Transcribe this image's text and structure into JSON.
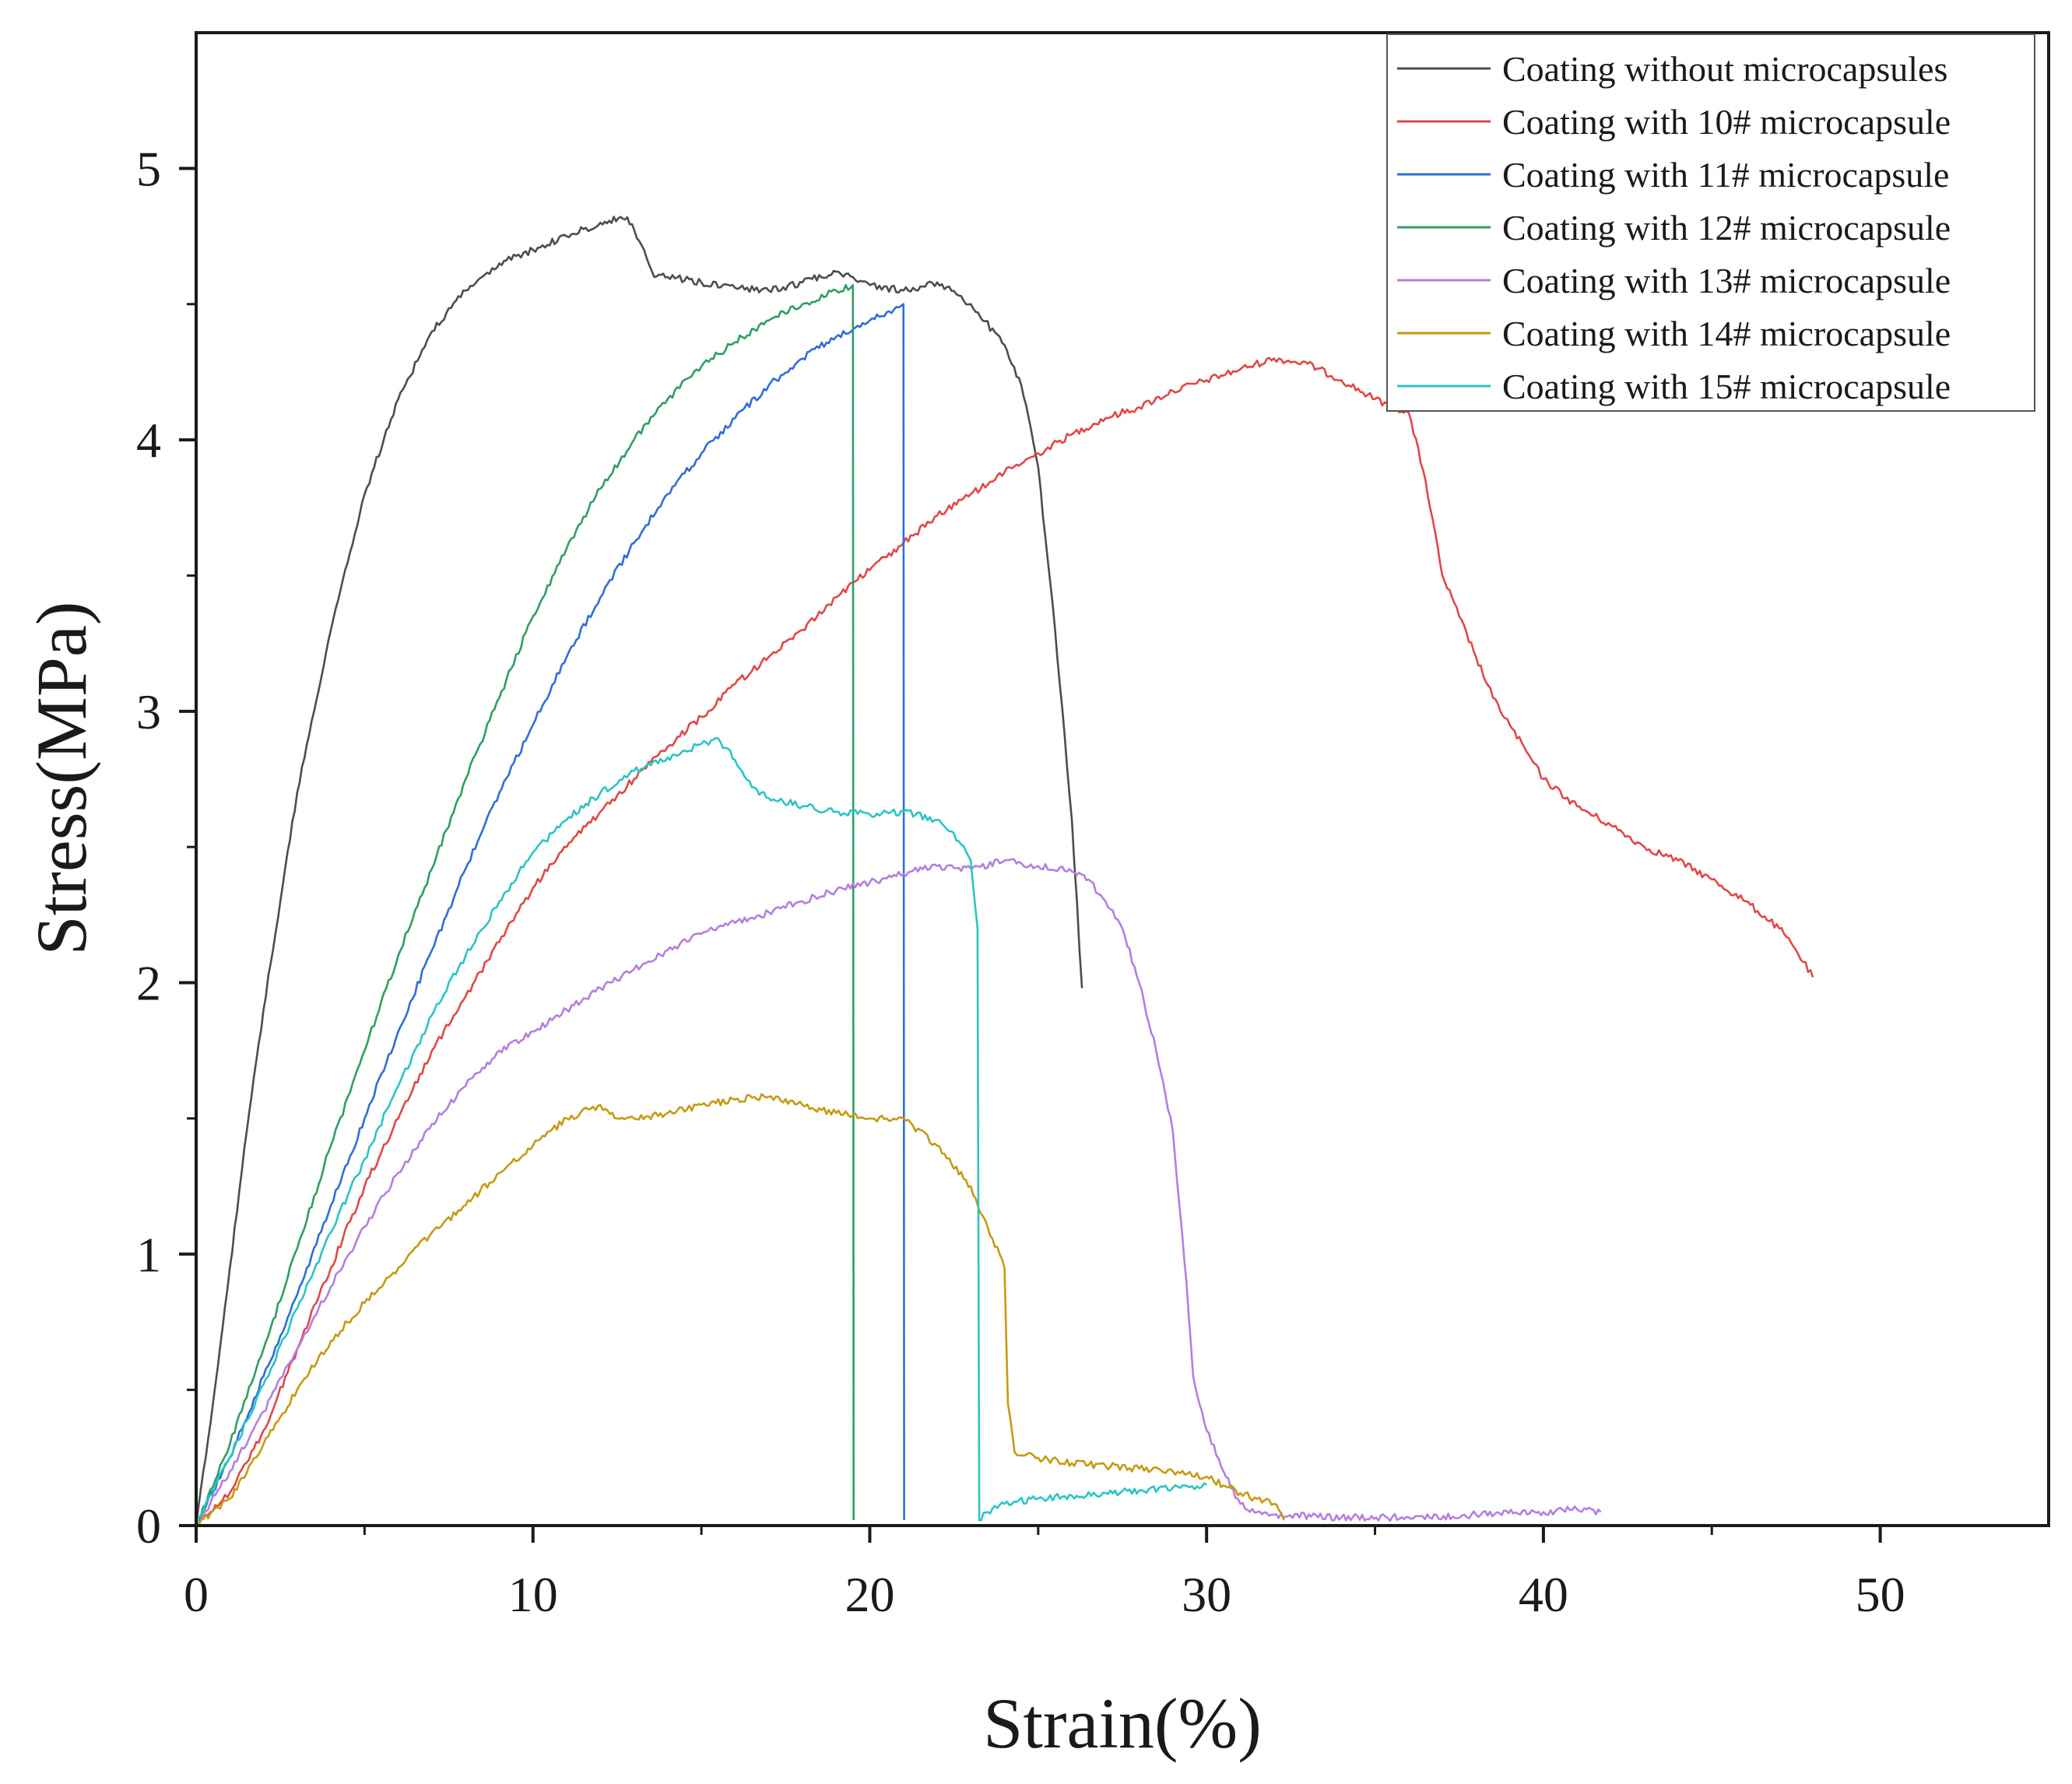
{
  "chart_data": {
    "type": "line",
    "title": "",
    "xlabel": "Strain(%)",
    "ylabel": "Stress(MPa)",
    "xlim": [
      0,
      55
    ],
    "ylim": [
      0,
      5.5
    ],
    "xticks": [
      0,
      10,
      20,
      30,
      40,
      50
    ],
    "yticks": [
      0,
      1,
      2,
      3,
      4,
      5
    ],
    "grid": false,
    "legend_position": "top-right",
    "series": [
      {
        "name": "Coating without microcapsules",
        "color": "#4d4d4d",
        "x": [
          0,
          0.5,
          1,
          1.5,
          2,
          2.5,
          3,
          4,
          5,
          6,
          7,
          8,
          9,
          10,
          11,
          12,
          12.8,
          13.3,
          13.6,
          14,
          15,
          16,
          17,
          18,
          19,
          19.5,
          20,
          21,
          22,
          23,
          24,
          24.5,
          25,
          25.5,
          26,
          26.3
        ],
        "y": [
          0,
          0.45,
          0.95,
          1.45,
          1.9,
          2.3,
          2.7,
          3.3,
          3.8,
          4.15,
          4.4,
          4.55,
          4.65,
          4.7,
          4.75,
          4.8,
          4.82,
          4.7,
          4.6,
          4.6,
          4.58,
          4.56,
          4.55,
          4.58,
          4.62,
          4.6,
          4.57,
          4.55,
          4.58,
          4.5,
          4.35,
          4.2,
          3.9,
          3.3,
          2.6,
          1.98
        ]
      },
      {
        "name": "Coating with 10# microcapsule",
        "color": "#e04848",
        "x": [
          0,
          1,
          2,
          3,
          4,
          5,
          6,
          7,
          8,
          9,
          10,
          11,
          12,
          13,
          14,
          15,
          16,
          17,
          18,
          19,
          20,
          21,
          22,
          23,
          24,
          25,
          26,
          27,
          28,
          29,
          30,
          31,
          32,
          33,
          34,
          35,
          36,
          36.5,
          37,
          37.5,
          38,
          38.5,
          39,
          39.5,
          40,
          41,
          42,
          43,
          44,
          45,
          46,
          47,
          47.5,
          48
        ],
        "y": [
          0,
          0.12,
          0.35,
          0.65,
          0.95,
          1.25,
          1.5,
          1.75,
          1.95,
          2.15,
          2.35,
          2.5,
          2.63,
          2.75,
          2.87,
          2.98,
          3.1,
          3.2,
          3.3,
          3.42,
          3.52,
          3.62,
          3.72,
          3.8,
          3.88,
          3.95,
          4.02,
          4.08,
          4.12,
          4.18,
          4.22,
          4.26,
          4.3,
          4.28,
          4.22,
          4.15,
          4.1,
          3.85,
          3.5,
          3.35,
          3.2,
          3.05,
          2.95,
          2.85,
          2.75,
          2.65,
          2.58,
          2.5,
          2.45,
          2.38,
          2.3,
          2.2,
          2.12,
          2.02
        ]
      },
      {
        "name": "Coating with 11# microcapsule",
        "color": "#2e6fd6",
        "x": [
          0,
          1,
          2,
          3,
          4,
          5,
          6,
          7,
          8,
          9,
          10,
          11,
          12,
          13,
          14,
          15,
          16,
          17,
          18,
          19,
          20,
          20.5,
          21,
          21.02
        ],
        "y": [
          0,
          0.25,
          0.55,
          0.85,
          1.18,
          1.5,
          1.82,
          2.12,
          2.42,
          2.7,
          2.95,
          3.2,
          3.42,
          3.62,
          3.8,
          3.95,
          4.08,
          4.2,
          4.3,
          4.38,
          4.44,
          4.47,
          4.5,
          0.02
        ]
      },
      {
        "name": "Coating with 12# microcapsule",
        "color": "#2f9e63",
        "x": [
          0,
          1,
          2,
          3,
          4,
          5,
          6,
          7,
          8,
          9,
          10,
          11,
          12,
          13,
          14,
          15,
          16,
          17,
          18,
          19,
          19.5,
          19.52
        ],
        "y": [
          0,
          0.3,
          0.65,
          1.02,
          1.4,
          1.75,
          2.1,
          2.42,
          2.75,
          3.05,
          3.35,
          3.6,
          3.82,
          4.0,
          4.15,
          4.27,
          4.36,
          4.44,
          4.5,
          4.55,
          4.57,
          0.02
        ]
      },
      {
        "name": "Coating with 13# microcapsule",
        "color": "#b57ee0",
        "x": [
          0,
          1,
          2,
          3,
          4,
          5,
          6,
          7,
          8,
          9,
          10,
          11,
          12,
          13,
          14,
          15,
          16,
          17,
          18,
          19,
          20,
          21,
          22,
          23,
          24,
          25,
          26,
          26.5,
          27,
          27.5,
          28,
          28.5,
          29,
          29.4,
          29.6,
          30,
          30.5,
          31,
          31.5,
          32,
          34,
          36,
          38,
          40,
          41,
          41.7
        ],
        "y": [
          0,
          0.2,
          0.42,
          0.65,
          0.88,
          1.1,
          1.3,
          1.48,
          1.62,
          1.75,
          1.82,
          1.9,
          1.98,
          2.05,
          2.12,
          2.18,
          2.22,
          2.26,
          2.3,
          2.34,
          2.37,
          2.4,
          2.43,
          2.42,
          2.45,
          2.43,
          2.41,
          2.38,
          2.3,
          2.2,
          2.0,
          1.75,
          1.45,
          0.9,
          0.55,
          0.35,
          0.2,
          0.08,
          0.05,
          0.04,
          0.03,
          0.03,
          0.04,
          0.05,
          0.06,
          0.05
        ]
      },
      {
        "name": "Coating with 14# microcapsule",
        "color": "#c79a12",
        "x": [
          0,
          1,
          2,
          3,
          4,
          5,
          6,
          7,
          8,
          9,
          10,
          11,
          12,
          12.5,
          13,
          14,
          15,
          16,
          17,
          18,
          19,
          20,
          21,
          22,
          23,
          23.5,
          24,
          24.1,
          24.3,
          25,
          26,
          27,
          28,
          29,
          30,
          31,
          32,
          32.3
        ],
        "y": [
          0,
          0.1,
          0.3,
          0.5,
          0.68,
          0.82,
          0.95,
          1.08,
          1.18,
          1.3,
          1.4,
          1.5,
          1.55,
          1.5,
          1.5,
          1.52,
          1.55,
          1.57,
          1.58,
          1.55,
          1.52,
          1.5,
          1.5,
          1.4,
          1.25,
          1.1,
          0.95,
          0.45,
          0.27,
          0.25,
          0.23,
          0.22,
          0.21,
          0.2,
          0.18,
          0.12,
          0.08,
          0.02
        ]
      },
      {
        "name": "Coating with 15# microcapsule",
        "color": "#2cc4c4",
        "x": [
          0,
          1,
          2,
          3,
          4,
          5,
          6,
          7,
          8,
          9,
          10,
          11,
          12,
          13,
          14,
          15,
          15.5,
          16,
          16.5,
          17,
          18,
          19,
          20,
          21,
          22,
          22.5,
          23,
          23.2,
          23.25,
          23.5,
          24,
          25,
          26,
          27,
          28,
          29,
          30
        ],
        "y": [
          0,
          0.25,
          0.52,
          0.8,
          1.08,
          1.35,
          1.62,
          1.88,
          2.1,
          2.3,
          2.48,
          2.6,
          2.7,
          2.78,
          2.83,
          2.88,
          2.9,
          2.82,
          2.72,
          2.68,
          2.65,
          2.63,
          2.62,
          2.63,
          2.6,
          2.55,
          2.45,
          2.2,
          0.02,
          0.05,
          0.08,
          0.1,
          0.11,
          0.12,
          0.13,
          0.14,
          0.15
        ]
      }
    ]
  }
}
